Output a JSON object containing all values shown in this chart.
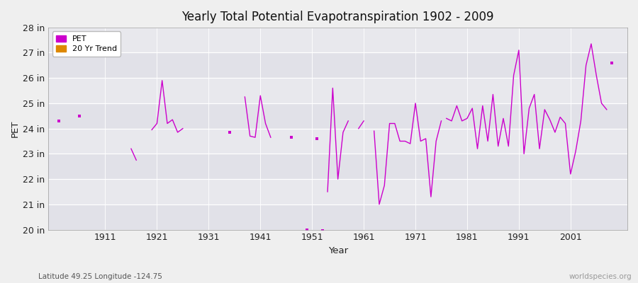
{
  "title": "Yearly Total Potential Evapotranspiration 1902 - 2009",
  "xlabel": "Year",
  "ylabel": "PET",
  "lat_lon_label": "Latitude 49.25 Longitude -124.75",
  "watermark": "worldspecies.org",
  "background_color": "#efefef",
  "plot_bg_color": "#e8e8ed",
  "line_color": "#cc00cc",
  "trend_color": "#dd8800",
  "ylim": [
    20,
    28
  ],
  "ytick_labels": [
    "20 in",
    "21 in",
    "22 in",
    "23 in",
    "24 in",
    "25 in",
    "26 in",
    "27 in",
    "28 in"
  ],
  "ytick_values": [
    20,
    21,
    22,
    23,
    24,
    25,
    26,
    27,
    28
  ],
  "xtick_values": [
    1911,
    1921,
    1931,
    1941,
    1951,
    1961,
    1971,
    1981,
    1991,
    2001
  ],
  "xlim": [
    1900,
    2012
  ],
  "segments": [
    {
      "years": [
        1902
      ],
      "vals": [
        24.3
      ]
    },
    {
      "years": [
        1906
      ],
      "vals": [
        24.5
      ]
    },
    {
      "years": [
        1916,
        1917
      ],
      "vals": [
        23.2,
        22.75
      ]
    },
    {
      "years": [
        1920,
        1921,
        1922,
        1923,
        1924,
        1925,
        1926
      ],
      "vals": [
        23.95,
        24.2,
        25.9,
        24.2,
        24.35,
        23.85,
        24.0
      ]
    },
    {
      "years": [
        1935
      ],
      "vals": [
        23.85
      ]
    },
    {
      "years": [
        1938,
        1939,
        1940,
        1941,
        1942,
        1943
      ],
      "vals": [
        25.25,
        23.7,
        23.65,
        25.3,
        24.2,
        23.65
      ]
    },
    {
      "years": [
        1947
      ],
      "vals": [
        23.65
      ]
    },
    {
      "years": [
        1950
      ],
      "vals": [
        20.0
      ]
    },
    {
      "years": [
        1952
      ],
      "vals": [
        23.6
      ]
    },
    {
      "years": [
        1953
      ],
      "vals": [
        19.95
      ]
    },
    {
      "years": [
        1954,
        1955,
        1956,
        1957,
        1958
      ],
      "vals": [
        21.5,
        25.6,
        22.0,
        23.85,
        24.3
      ]
    },
    {
      "years": [
        1960,
        1961
      ],
      "vals": [
        24.0,
        24.3
      ]
    },
    {
      "years": [
        1963,
        1964,
        1965,
        1966,
        1967,
        1968,
        1969,
        1970,
        1971,
        1972,
        1973,
        1974,
        1975,
        1976
      ],
      "vals": [
        23.9,
        21.0,
        21.75,
        24.2,
        24.2,
        23.5,
        23.5,
        23.4,
        25.0,
        23.5,
        23.6,
        21.3,
        23.5,
        24.3
      ]
    },
    {
      "years": [
        1977,
        1978,
        1979,
        1980,
        1981,
        1982,
        1983,
        1984,
        1985,
        1986,
        1987,
        1988,
        1989,
        1990,
        1991,
        1992,
        1993,
        1994,
        1995,
        1996,
        1997,
        1998,
        1999,
        2000,
        2001,
        2002,
        2003,
        2004,
        2005,
        2006,
        2007,
        2008
      ],
      "vals": [
        24.4,
        24.3,
        24.9,
        24.3,
        24.4,
        24.8,
        23.2,
        24.9,
        23.5,
        25.35,
        23.3,
        24.4,
        23.3,
        26.1,
        27.1,
        23.0,
        24.8,
        25.35,
        23.2,
        24.75,
        24.35,
        23.85,
        24.45,
        24.2,
        22.2,
        23.1,
        24.3,
        26.5,
        27.35,
        26.1,
        25.0,
        24.75
      ]
    },
    {
      "years": [
        2009
      ],
      "vals": [
        26.6
      ]
    }
  ]
}
